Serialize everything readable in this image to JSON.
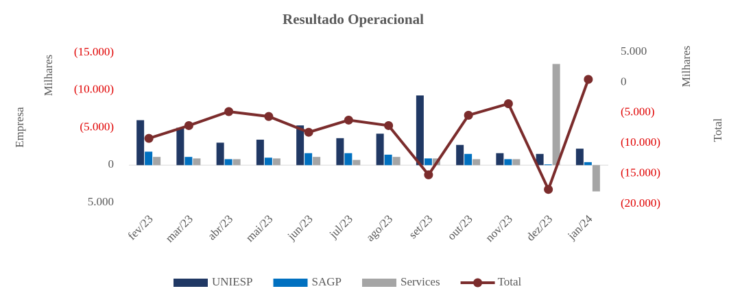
{
  "chart_data": {
    "type": "bar_line",
    "title": "Resultado Operacional",
    "y_axis_label": "Empresa",
    "y_unit_label": "Milhares",
    "y2_unit_label": "Milhares",
    "y2_axis_label": "Total",
    "categories": [
      "fev/23",
      "mar/23",
      "abr/23",
      "mai/23",
      "jun/23",
      "jul/23",
      "ago/23",
      "set/23",
      "out/23",
      "nov/23",
      "dez/23",
      "jan/24"
    ],
    "ylim": [
      -15000,
      5000
    ],
    "yticks": [
      {
        "value": -15000,
        "label": "(15.000)"
      },
      {
        "value": -10000,
        "label": "(10.000)"
      },
      {
        "value": -5000,
        "label": "(5.000)"
      },
      0,
      {
        "value": 5000,
        "label": "5.000"
      }
    ],
    "y_reversed": true,
    "y2lim": [
      -20000,
      5000
    ],
    "y2ticks": [
      {
        "value": 5000,
        "label": "5.000"
      },
      0,
      {
        "value": -5000,
        "label": "(5.000)"
      },
      {
        "value": -10000,
        "label": "(10.000)"
      },
      {
        "value": -15000,
        "label": "(15.000)"
      },
      {
        "value": -20000,
        "label": "(20.000)"
      }
    ],
    "negative_label_color": "#e00000",
    "series": [
      {
        "name": "UNIESP",
        "type": "bar",
        "color": "#203864",
        "values": [
          -6000,
          -5000,
          -3000,
          -3400,
          -5300,
          -3600,
          -4200,
          -9300,
          -2700,
          -1600,
          -1500,
          -2200
        ]
      },
      {
        "name": "SAGP",
        "type": "bar",
        "color": "#0070c0",
        "values": [
          -1800,
          -1100,
          -800,
          -1000,
          -1600,
          -1600,
          -1400,
          -900,
          -1500,
          -800,
          -100,
          -400
        ]
      },
      {
        "name": "Services",
        "type": "bar",
        "color": "#a5a5a5",
        "values": [
          -1100,
          -900,
          -800,
          -900,
          -1100,
          -700,
          -1100,
          -900,
          -800,
          -800,
          -13500,
          3500
        ]
      },
      {
        "name": "Total",
        "type": "line",
        "axis": "y2",
        "color": "#7b2c2c",
        "values": [
          -9200,
          -7100,
          -4800,
          -5600,
          -8200,
          -6200,
          -7100,
          -15200,
          -5400,
          -3500,
          -17600,
          500
        ]
      }
    ]
  }
}
